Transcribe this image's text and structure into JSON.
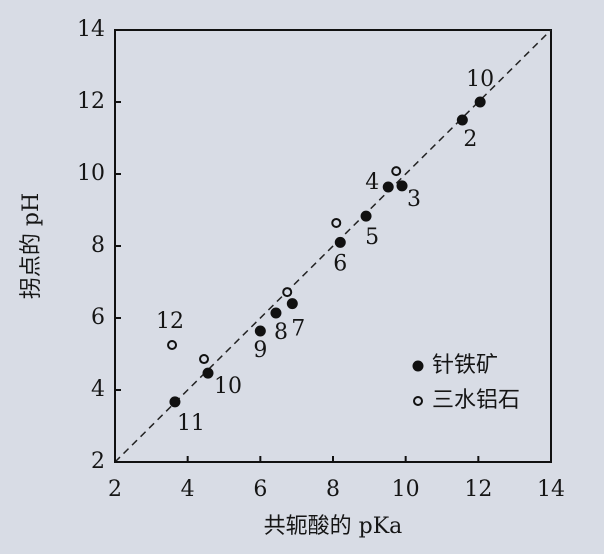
{
  "chart_data": {
    "type": "scatter",
    "xlabel": "共轭酸的 pKa",
    "ylabel": "拐点的 pH",
    "xlim": [
      2,
      14
    ],
    "ylim": [
      2,
      14
    ],
    "xticks": [
      2,
      4,
      6,
      8,
      10,
      12,
      14
    ],
    "yticks": [
      2,
      4,
      6,
      8,
      10,
      12,
      14
    ],
    "legend": "lower right",
    "series": [
      {
        "name": "针铁矿",
        "color": "#111111",
        "marker": "filled",
        "x": [
          12.05,
          11.56,
          9.52,
          9.9,
          8.91,
          8.2,
          6.88,
          6.43,
          6.0,
          4.56,
          3.65
        ],
        "y": [
          12.0,
          11.5,
          9.64,
          9.67,
          8.83,
          8.1,
          6.4,
          6.14,
          5.64,
          4.47,
          3.67
        ],
        "labels": [
          "10",
          "2",
          "4",
          "3",
          "5",
          "6",
          "7",
          "8",
          "9",
          "10",
          "11"
        ]
      },
      {
        "name": "三水铝石",
        "color": "#111111",
        "marker": "open",
        "x": [
          9.74,
          8.09,
          6.74,
          4.45,
          3.57
        ],
        "y": [
          10.08,
          8.64,
          6.72,
          4.86,
          5.25
        ],
        "labels": [
          null,
          null,
          null,
          null,
          "12"
        ]
      }
    ]
  }
}
